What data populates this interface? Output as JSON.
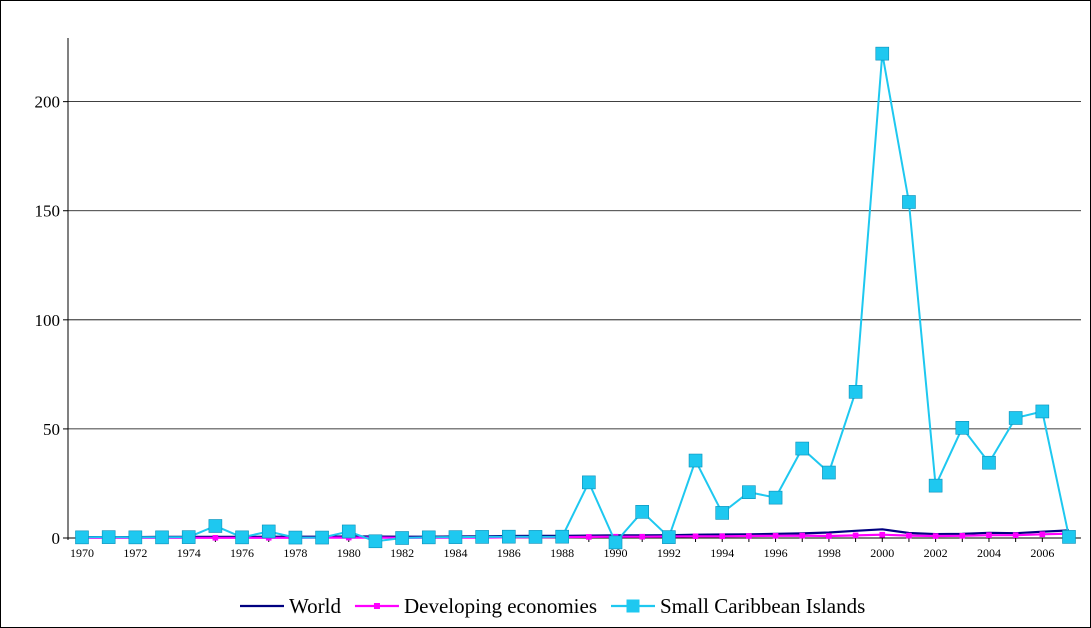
{
  "chart_data": {
    "type": "line",
    "title": "",
    "xlabel": "",
    "ylabel": "",
    "ylim": [
      0,
      220
    ],
    "y_ticks": [
      0,
      50,
      100,
      150,
      200
    ],
    "x_tick_labels": [
      "1970",
      "1972",
      "1974",
      "1976",
      "1978",
      "1980",
      "1982",
      "1984",
      "1986",
      "1988",
      "1990",
      "1992",
      "1994",
      "1996",
      "1998",
      "2000",
      "2002",
      "2004",
      "2006"
    ],
    "grid": "horizontal",
    "legend_position": "bottom",
    "x": [
      1970,
      1971,
      1972,
      1973,
      1974,
      1975,
      1976,
      1977,
      1978,
      1979,
      1980,
      1981,
      1982,
      1983,
      1984,
      1985,
      1986,
      1987,
      1988,
      1989,
      1990,
      1991,
      1992,
      1993,
      1994,
      1995,
      1996,
      1997,
      1998,
      1999,
      2000,
      2001,
      2002,
      2003,
      2004,
      2005,
      2006,
      2007
    ],
    "series": [
      {
        "name": "World",
        "color": "#000080",
        "marker": "none",
        "values": [
          0.4,
          0.4,
          0.4,
          0.5,
          0.5,
          0.5,
          0.5,
          0.6,
          0.6,
          0.6,
          0.7,
          0.7,
          0.6,
          0.6,
          0.7,
          0.8,
          0.9,
          1.0,
          1.0,
          1.1,
          1.2,
          1.2,
          1.3,
          1.5,
          1.6,
          1.7,
          1.9,
          2.1,
          2.5,
          3.3,
          4.0,
          2.3,
          1.8,
          1.9,
          2.4,
          2.2,
          2.9,
          3.5
        ]
      },
      {
        "name": "Developing economies",
        "color": "#ff00ff",
        "marker": "small-square",
        "values": [
          0.1,
          0.1,
          0.1,
          0.1,
          0.1,
          0.1,
          0.1,
          0.1,
          0.1,
          0.2,
          0.2,
          0.2,
          0.1,
          0.1,
          0.2,
          0.2,
          0.3,
          0.3,
          0.4,
          0.5,
          0.6,
          0.6,
          0.7,
          0.8,
          0.8,
          0.9,
          1.0,
          1.1,
          0.9,
          1.2,
          1.5,
          1.1,
          0.9,
          1.0,
          1.3,
          1.3,
          1.7,
          2.0
        ]
      },
      {
        "name": "Small Caribbean Islands",
        "color": "#1ec8f0",
        "marker": "large-square",
        "values": [
          0.3,
          0.4,
          0.3,
          0.3,
          0.4,
          5.5,
          0.3,
          3.0,
          0.2,
          0.2,
          3.0,
          -1.5,
          0,
          0.3,
          0.4,
          0.5,
          0.6,
          0.5,
          0.6,
          25.5,
          -2.0,
          12.0,
          0.4,
          35.5,
          11.5,
          21.0,
          18.5,
          41.0,
          30.0,
          67.0,
          222.0,
          154.0,
          24.0,
          50.5,
          34.5,
          55.0,
          58.0,
          0.5
        ]
      }
    ]
  }
}
